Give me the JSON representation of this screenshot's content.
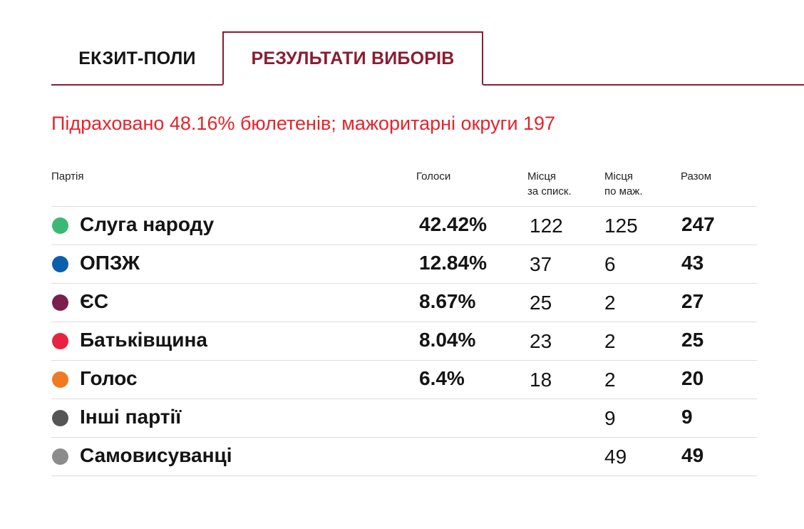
{
  "tabs": [
    {
      "label": "ЕКЗИТ-ПОЛИ",
      "active": false
    },
    {
      "label": "РЕЗУЛЬТАТИ ВИБОРІВ",
      "active": true
    }
  ],
  "colors": {
    "accent": "#8a1c33",
    "subtitle": "#e3242b",
    "divider": "#dcdcdc"
  },
  "subtitle": "Підраховано 48.16% бюлетенів; мажоритарні округи 197",
  "table": {
    "headers": {
      "party": "Партія",
      "votes": "Голоси",
      "list_seats_1": "Місця",
      "list_seats_2": "за списк.",
      "maj_seats_1": "Місця",
      "maj_seats_2": "по маж.",
      "total": "Разом"
    },
    "rows": [
      {
        "party": "Слуга народу",
        "color": "#3db774",
        "votes": "42.42%",
        "list": "122",
        "maj": "125",
        "total": "247"
      },
      {
        "party": "ОПЗЖ",
        "color": "#0a5eae",
        "votes": "12.84%",
        "list": "37",
        "maj": "6",
        "total": "43"
      },
      {
        "party": "ЄС",
        "color": "#7a1f4e",
        "votes": "8.67%",
        "list": "25",
        "maj": "2",
        "total": "27"
      },
      {
        "party": "Батьківщина",
        "color": "#e8223f",
        "votes": "8.04%",
        "list": "23",
        "maj": "2",
        "total": "25"
      },
      {
        "party": "Голос",
        "color": "#ef7a22",
        "votes": "6.4%",
        "list": "18",
        "maj": "2",
        "total": "20"
      },
      {
        "party": "Інші партії",
        "color": "#555555",
        "votes": "",
        "list": "",
        "maj": "9",
        "total": "9"
      },
      {
        "party": "Самовисуванці",
        "color": "#8c8c8c",
        "votes": "",
        "list": "",
        "maj": "49",
        "total": "49"
      }
    ]
  }
}
